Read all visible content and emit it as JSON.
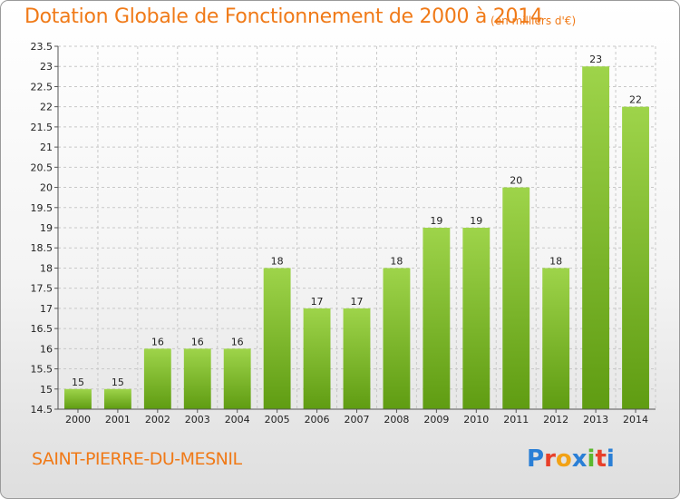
{
  "header": {
    "title": "Dotation Globale de Fonctionnement de 2000 à 2014",
    "unit": "(en milliers d'€)"
  },
  "footer": {
    "commune": "SAINT-PIERRE-DU-MESNIL",
    "logo": "Proxiti",
    "logo_colors": [
      "#2a7fd6",
      "#e8402a",
      "#f2a216",
      "#2a7fd6",
      "#5cb82e",
      "#e8402a",
      "#2a7fd6"
    ]
  },
  "colors": {
    "bar_light": "#9ed44a",
    "bar_dark": "#5f9c12",
    "grid": "#c8c8c8",
    "accent": "#f07a18"
  },
  "chart_data": {
    "type": "bar",
    "title": "Dotation Globale de Fonctionnement de 2000 à 2014",
    "subtitle": "(en milliers d'€)",
    "xlabel": "",
    "ylabel": "",
    "categories": [
      "2000",
      "2001",
      "2002",
      "2003",
      "2004",
      "2005",
      "2006",
      "2007",
      "2008",
      "2009",
      "2010",
      "2011",
      "2012",
      "2013",
      "2014"
    ],
    "values": [
      15,
      15,
      16,
      16,
      16,
      18,
      17,
      17,
      18,
      19,
      19,
      20,
      18,
      23,
      22
    ],
    "data_labels": [
      "15",
      "15",
      "16",
      "16",
      "16",
      "18",
      "17",
      "17",
      "18",
      "19",
      "19",
      "20",
      "18",
      "23",
      "22"
    ],
    "ylim": [
      14.5,
      23.5
    ],
    "yticks": [
      14.5,
      15,
      15.5,
      16,
      16.5,
      17,
      17.5,
      18,
      18.5,
      19,
      19.5,
      20,
      20.5,
      21,
      21.5,
      22,
      22.5,
      23,
      23.5
    ],
    "ytick_labels": [
      "14.5",
      "15",
      "15.5",
      "16",
      "16.5",
      "17",
      "17.5",
      "18",
      "18.5",
      "19",
      "19.5",
      "20",
      "20.5",
      "21",
      "21.5",
      "22",
      "22.5",
      "23",
      "23.5"
    ],
    "grid": true,
    "legend": "none"
  }
}
